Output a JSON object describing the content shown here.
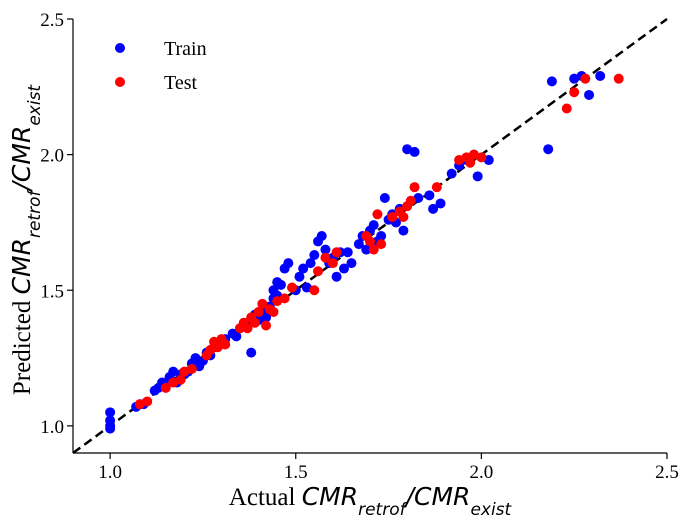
{
  "chart_data": {
    "type": "scatter",
    "xlim": [
      0.9,
      2.5
    ],
    "ylim": [
      0.9,
      2.5
    ],
    "x_ticks": [
      1.0,
      1.5,
      2.0,
      2.5
    ],
    "y_ticks": [
      1.0,
      1.5,
      2.0,
      2.5
    ],
    "x_tick_labels": [
      "1.0",
      "1.5",
      "2.0",
      "2.5"
    ],
    "y_tick_labels": [
      "1.0",
      "1.5",
      "2.0",
      "2.5"
    ],
    "xlabel": {
      "prefix": "Actual ",
      "math": "CMR",
      "sub1": "retrof",
      "slash": "/",
      "math2": "CMR",
      "sub2": "exist"
    },
    "ylabel": {
      "prefix": "Predicted ",
      "math": "CMR",
      "sub1": "retrof",
      "slash": "/",
      "math2": "CMR",
      "sub2": "exist"
    },
    "grid": false,
    "legend_position": "top-left",
    "reference_line": {
      "style": "dashed",
      "color": "#000000",
      "from": [
        0.9,
        0.9
      ],
      "to": [
        2.5,
        2.5
      ]
    },
    "series": [
      {
        "name": "Train",
        "color": "#0000ff",
        "points": [
          [
            1.0,
            1.05
          ],
          [
            1.0,
            1.02
          ],
          [
            1.0,
            1.0
          ],
          [
            1.0,
            0.99
          ],
          [
            1.07,
            1.07
          ],
          [
            1.09,
            1.08
          ],
          [
            1.12,
            1.13
          ],
          [
            1.13,
            1.14
          ],
          [
            1.14,
            1.16
          ],
          [
            1.15,
            1.15
          ],
          [
            1.16,
            1.18
          ],
          [
            1.17,
            1.2
          ],
          [
            1.18,
            1.16
          ],
          [
            1.19,
            1.19
          ],
          [
            1.2,
            1.19
          ],
          [
            1.21,
            1.2
          ],
          [
            1.22,
            1.23
          ],
          [
            1.23,
            1.25
          ],
          [
            1.24,
            1.22
          ],
          [
            1.25,
            1.24
          ],
          [
            1.26,
            1.27
          ],
          [
            1.27,
            1.26
          ],
          [
            1.28,
            1.29
          ],
          [
            1.29,
            1.3
          ],
          [
            1.3,
            1.31
          ],
          [
            1.31,
            1.32
          ],
          [
            1.33,
            1.34
          ],
          [
            1.34,
            1.33
          ],
          [
            1.35,
            1.36
          ],
          [
            1.36,
            1.37
          ],
          [
            1.37,
            1.38
          ],
          [
            1.38,
            1.27
          ],
          [
            1.39,
            1.41
          ],
          [
            1.4,
            1.39
          ],
          [
            1.41,
            1.42
          ],
          [
            1.42,
            1.4
          ],
          [
            1.43,
            1.44
          ],
          [
            1.44,
            1.47
          ],
          [
            1.44,
            1.5
          ],
          [
            1.45,
            1.53
          ],
          [
            1.45,
            1.48
          ],
          [
            1.46,
            1.52
          ],
          [
            1.47,
            1.58
          ],
          [
            1.48,
            1.6
          ],
          [
            1.5,
            1.5
          ],
          [
            1.51,
            1.55
          ],
          [
            1.52,
            1.58
          ],
          [
            1.53,
            1.51
          ],
          [
            1.54,
            1.6
          ],
          [
            1.55,
            1.63
          ],
          [
            1.56,
            1.68
          ],
          [
            1.57,
            1.7
          ],
          [
            1.58,
            1.65
          ],
          [
            1.59,
            1.6
          ],
          [
            1.6,
            1.62
          ],
          [
            1.61,
            1.55
          ],
          [
            1.62,
            1.64
          ],
          [
            1.63,
            1.58
          ],
          [
            1.64,
            1.64
          ],
          [
            1.65,
            1.6
          ],
          [
            1.67,
            1.67
          ],
          [
            1.68,
            1.7
          ],
          [
            1.69,
            1.65
          ],
          [
            1.7,
            1.72
          ],
          [
            1.71,
            1.74
          ],
          [
            1.72,
            1.68
          ],
          [
            1.73,
            1.7
          ],
          [
            1.74,
            1.84
          ],
          [
            1.75,
            1.76
          ],
          [
            1.76,
            1.78
          ],
          [
            1.77,
            1.75
          ],
          [
            1.78,
            1.8
          ],
          [
            1.79,
            1.72
          ],
          [
            1.8,
            2.02
          ],
          [
            1.82,
            2.01
          ],
          [
            1.83,
            1.84
          ],
          [
            1.86,
            1.85
          ],
          [
            1.87,
            1.8
          ],
          [
            1.89,
            1.82
          ],
          [
            1.92,
            1.93
          ],
          [
            1.94,
            1.96
          ],
          [
            1.96,
            1.98
          ],
          [
            1.98,
            2.0
          ],
          [
            1.99,
            1.92
          ],
          [
            2.02,
            1.98
          ],
          [
            2.18,
            2.02
          ],
          [
            2.19,
            2.27
          ],
          [
            2.25,
            2.28
          ],
          [
            2.27,
            2.29
          ],
          [
            2.29,
            2.22
          ],
          [
            2.32,
            2.29
          ]
        ]
      },
      {
        "name": "Test",
        "color": "#ff0000",
        "points": [
          [
            1.08,
            1.08
          ],
          [
            1.1,
            1.09
          ],
          [
            1.15,
            1.14
          ],
          [
            1.17,
            1.16
          ],
          [
            1.19,
            1.17
          ],
          [
            1.2,
            1.2
          ],
          [
            1.22,
            1.21
          ],
          [
            1.26,
            1.26
          ],
          [
            1.27,
            1.28
          ],
          [
            1.28,
            1.31
          ],
          [
            1.29,
            1.29
          ],
          [
            1.3,
            1.32
          ],
          [
            1.31,
            1.3
          ],
          [
            1.35,
            1.36
          ],
          [
            1.36,
            1.38
          ],
          [
            1.37,
            1.36
          ],
          [
            1.38,
            1.4
          ],
          [
            1.39,
            1.38
          ],
          [
            1.4,
            1.42
          ],
          [
            1.41,
            1.45
          ],
          [
            1.42,
            1.37
          ],
          [
            1.43,
            1.43
          ],
          [
            1.44,
            1.42
          ],
          [
            1.45,
            1.46
          ],
          [
            1.47,
            1.47
          ],
          [
            1.49,
            1.51
          ],
          [
            1.55,
            1.5
          ],
          [
            1.56,
            1.57
          ],
          [
            1.58,
            1.62
          ],
          [
            1.6,
            1.6
          ],
          [
            1.61,
            1.64
          ],
          [
            1.69,
            1.7
          ],
          [
            1.7,
            1.68
          ],
          [
            1.71,
            1.65
          ],
          [
            1.72,
            1.78
          ],
          [
            1.73,
            1.67
          ],
          [
            1.76,
            1.77
          ],
          [
            1.78,
            1.79
          ],
          [
            1.79,
            1.77
          ],
          [
            1.8,
            1.81
          ],
          [
            1.81,
            1.83
          ],
          [
            1.82,
            1.88
          ],
          [
            1.88,
            1.88
          ],
          [
            1.94,
            1.98
          ],
          [
            1.96,
            1.99
          ],
          [
            1.97,
            1.97
          ],
          [
            1.98,
            2.0
          ],
          [
            2.0,
            1.99
          ],
          [
            2.23,
            2.17
          ],
          [
            2.25,
            2.23
          ],
          [
            2.28,
            2.28
          ],
          [
            2.37,
            2.28
          ]
        ]
      }
    ]
  }
}
